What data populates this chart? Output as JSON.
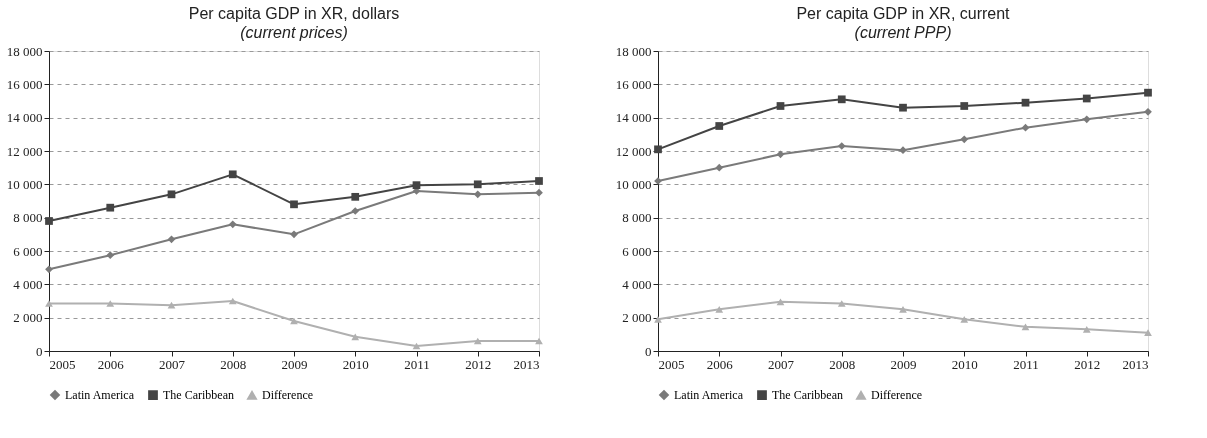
{
  "chart_data": [
    {
      "type": "line",
      "title": "Per capita GDP in XR, dollars",
      "subtitle": "(current prices)",
      "x": [
        2005,
        2006,
        2007,
        2008,
        2009,
        2010,
        2011,
        2012,
        2013
      ],
      "xlim": [
        2005,
        2013
      ],
      "xticks": [
        2005,
        2006,
        2007,
        2008,
        2009,
        2010,
        2011,
        2012,
        2013
      ],
      "ylim": [
        0,
        18000
      ],
      "yticks": [
        0,
        {
          "value": 2000,
          "label": "2 000"
        },
        {
          "value": 4000,
          "label": "4 000"
        },
        {
          "value": 6000,
          "label": "6 000"
        },
        {
          "value": 8000,
          "label": "8 000"
        },
        {
          "value": 10000,
          "label": "10 000"
        },
        {
          "value": 12000,
          "label": "12 000"
        },
        {
          "value": 14000,
          "label": "14 000"
        },
        {
          "value": 16000,
          "label": "16 000"
        },
        {
          "value": 18000,
          "label": "18 000"
        }
      ],
      "grid": "y",
      "legend": "bottom",
      "line_style": "solid",
      "series": [
        {
          "name": "Latin America",
          "color": "#7a7a7a",
          "marker": "diamond",
          "values": [
            4900,
            5750,
            6700,
            7600,
            7000,
            8400,
            9600,
            9400,
            9500
          ]
        },
        {
          "name": "The Caribbean",
          "color": "#444444",
          "marker": "square",
          "values": [
            7800,
            8600,
            9400,
            10600,
            8800,
            9250,
            9950,
            10000,
            10200
          ]
        },
        {
          "name": "Difference",
          "color": "#b0b0b0",
          "marker": "triangle",
          "values": [
            2850,
            2850,
            2750,
            3000,
            1800,
            850,
            300,
            600,
            600
          ]
        }
      ]
    },
    {
      "type": "line",
      "title": "Per capita GDP in XR, current",
      "subtitle": "(current PPP)",
      "x": [
        2005,
        2006,
        2007,
        2008,
        2009,
        2010,
        2011,
        2012,
        2013
      ],
      "xlim": [
        2005,
        2013
      ],
      "xticks": [
        2005,
        2006,
        2007,
        2008,
        2009,
        2010,
        2011,
        2012,
        2013
      ],
      "ylim": [
        0,
        18000
      ],
      "yticks": [
        0,
        {
          "value": 2000,
          "label": "2 000"
        },
        {
          "value": 4000,
          "label": "4 000"
        },
        {
          "value": 6000,
          "label": "6 000"
        },
        {
          "value": 8000,
          "label": "8 000"
        },
        {
          "value": 10000,
          "label": "10 000"
        },
        {
          "value": 12000,
          "label": "12 000"
        },
        {
          "value": 14000,
          "label": "14 000"
        },
        {
          "value": 16000,
          "label": "16 000"
        },
        {
          "value": 18000,
          "label": "18 000"
        }
      ],
      "grid": "y",
      "legend": "bottom",
      "line_style": "solid",
      "series": [
        {
          "name": "Latin America",
          "color": "#7a7a7a",
          "marker": "diamond",
          "values": [
            10200,
            11000,
            11800,
            12300,
            12050,
            12700,
            13400,
            13900,
            14350
          ]
        },
        {
          "name": "The Caribbean",
          "color": "#444444",
          "marker": "square",
          "values": [
            12100,
            13500,
            14700,
            15100,
            14600,
            14700,
            14900,
            15150,
            15500
          ]
        },
        {
          "name": "Difference",
          "color": "#b0b0b0",
          "marker": "triangle",
          "values": [
            1900,
            2500,
            2950,
            2850,
            2500,
            1900,
            1450,
            1300,
            1100
          ]
        }
      ]
    }
  ]
}
